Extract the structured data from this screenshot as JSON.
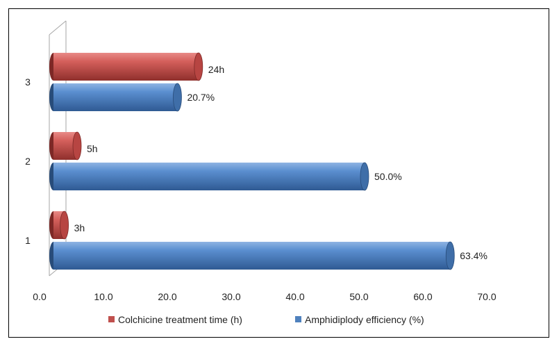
{
  "chart_data": {
    "type": "bar",
    "orientation": "horizontal",
    "style": "3d-cylinder",
    "categories": [
      "1",
      "2",
      "3"
    ],
    "series": [
      {
        "name": "Colchicine treatment time (h)",
        "values": [
          3,
          5,
          24
        ],
        "data_labels": [
          "3h",
          "5h",
          "24h"
        ],
        "color": "#c0504d"
      },
      {
        "name": "Amphidiplody efficiency (%)",
        "values": [
          63.4,
          50.0,
          20.7
        ],
        "data_labels": [
          "63.4%",
          "50.0%",
          "20.7%"
        ],
        "color": "#4f81bd"
      }
    ],
    "xlim": [
      0,
      70
    ],
    "xticks": [
      "0.0",
      "10.0",
      "20.0",
      "30.0",
      "40.0",
      "50.0",
      "60.0",
      "70.0"
    ],
    "title": "",
    "xlabel": "",
    "ylabel": "",
    "grid": false,
    "legend_position": "bottom"
  }
}
